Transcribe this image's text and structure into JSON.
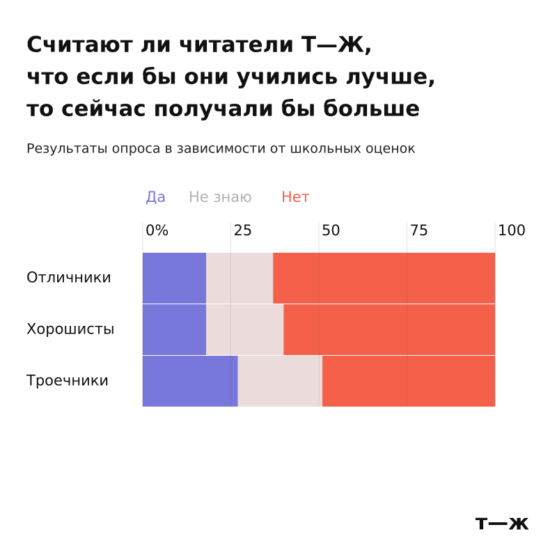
{
  "chart_data": {
    "type": "stacked-bar-horizontal",
    "title": [
      "Считают ли читатели Т—Ж,",
      "что если бы они учились лучше,",
      "то сейчас получали бы больше"
    ],
    "subtitle": "Результаты опроса в зависимости от школьных оценок",
    "categories": [
      "Отличники",
      "Хорошисты",
      "Троечники"
    ],
    "series": [
      {
        "name": "Да",
        "color": "#7877dc",
        "values": [
          18,
          18,
          27
        ]
      },
      {
        "name": "Не знаю",
        "color": "#ebdcdb",
        "values": [
          19,
          22,
          24
        ]
      },
      {
        "name": "Нет",
        "color": "#f4604a",
        "values": [
          63,
          60,
          49
        ]
      }
    ],
    "xlim": [
      0,
      100
    ],
    "xticks": [
      {
        "value": 0,
        "label": "0%"
      },
      25,
      50,
      75,
      100
    ],
    "grid": true,
    "logo": "т—ж"
  }
}
